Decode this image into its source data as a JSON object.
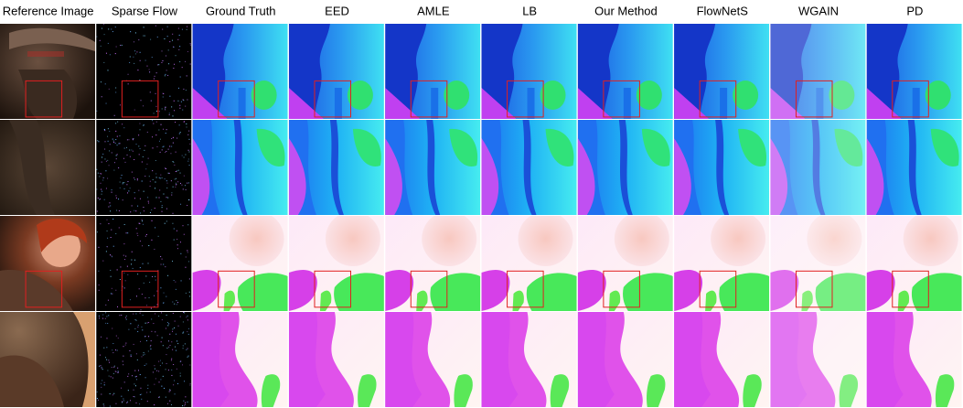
{
  "columns": [
    "Reference Image",
    "Sparse Flow",
    "Ground Truth",
    "EED",
    "AMLE",
    "LB",
    "Our Method",
    "FlowNetS",
    "WGAIN",
    "PD"
  ]
}
